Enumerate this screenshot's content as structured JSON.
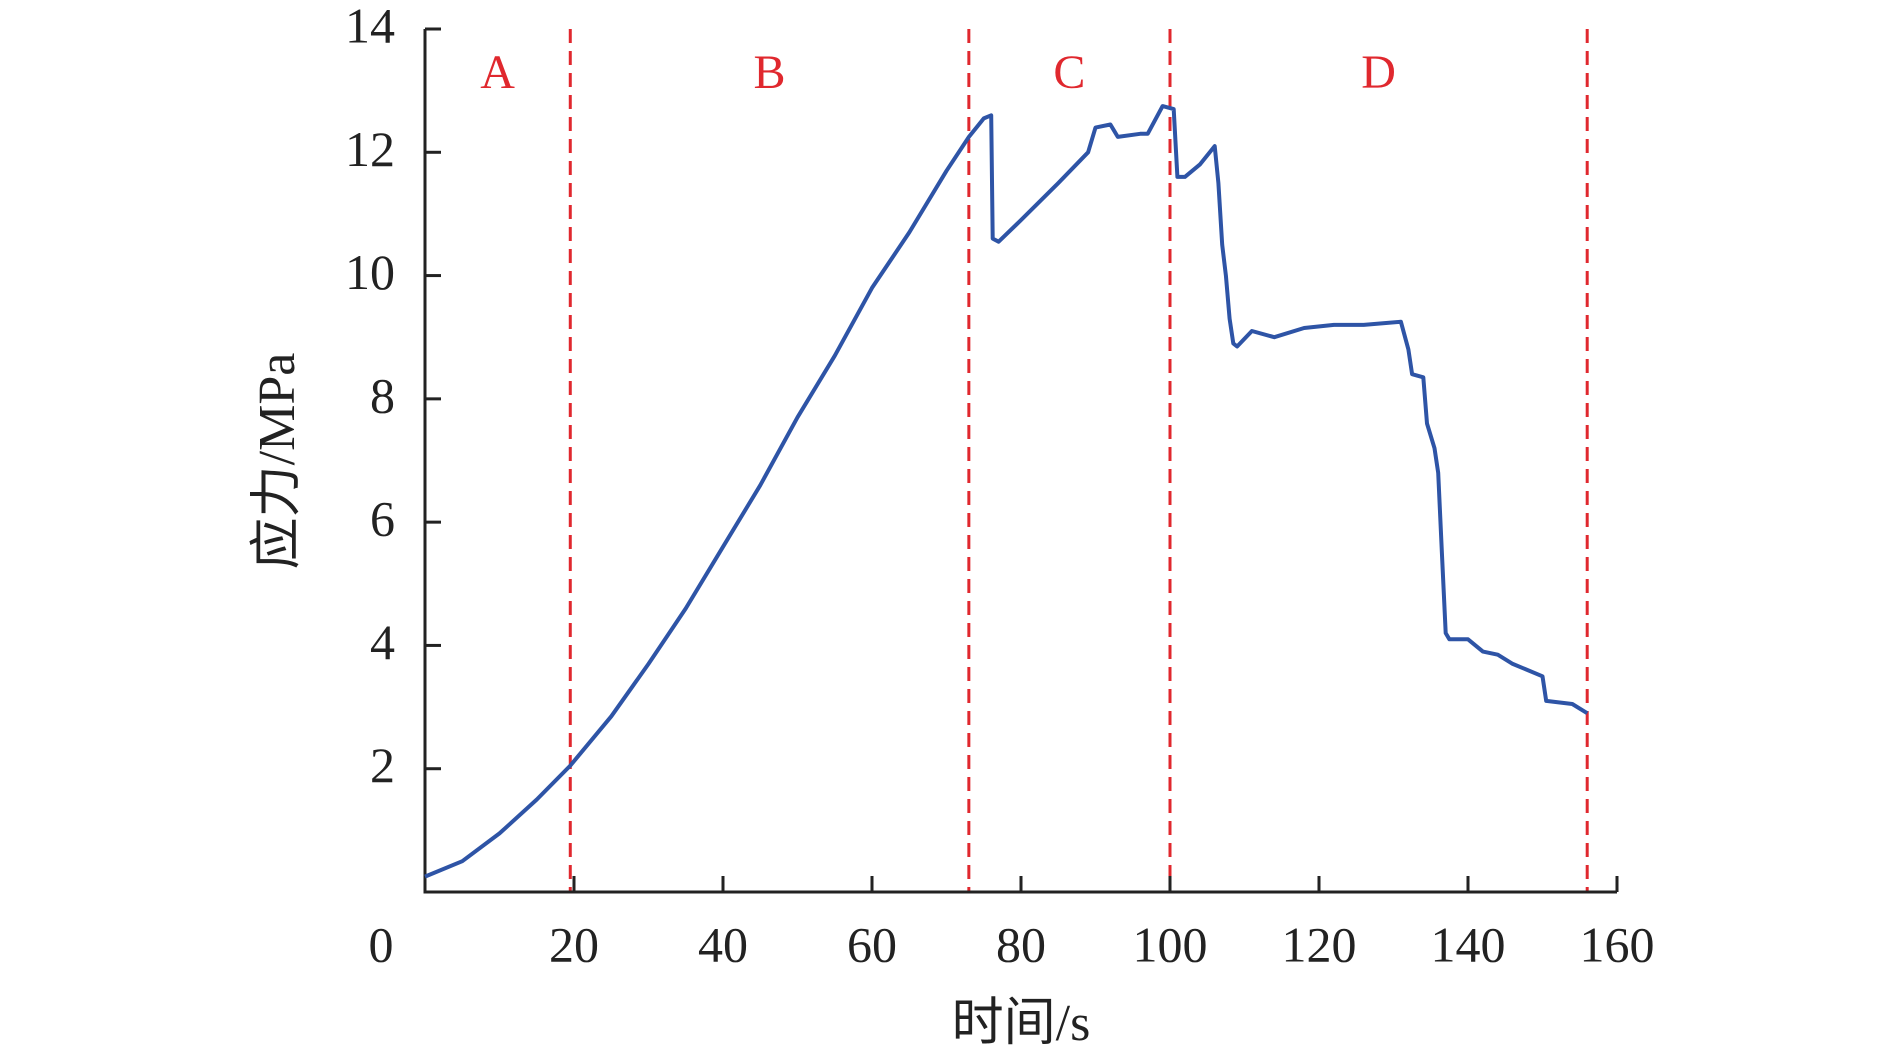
{
  "chart_data": {
    "type": "line",
    "x_label": "时间/s",
    "y_label": "应力/MPa",
    "color": "#2e54a6",
    "x": [
      0,
      5,
      10,
      15,
      19.5,
      25,
      30,
      35,
      40,
      45,
      50,
      55,
      60,
      65,
      70,
      73,
      75,
      76,
      76.2,
      77,
      80,
      85,
      89,
      90,
      92,
      93,
      96,
      97,
      99,
      100.5,
      101,
      102,
      104,
      106,
      106.5,
      107,
      107.5,
      108,
      108.5,
      109,
      111,
      114,
      118,
      122,
      126,
      131,
      132,
      132.5,
      134,
      134.5,
      135.5,
      136,
      136.5,
      137,
      137.5,
      140,
      142,
      144,
      146,
      150,
      150.5,
      154,
      156
    ],
    "values": [
      0.25,
      0.5,
      0.95,
      1.5,
      2.05,
      2.85,
      3.7,
      4.6,
      5.6,
      6.6,
      7.7,
      8.7,
      9.8,
      10.7,
      11.7,
      12.25,
      12.55,
      12.6,
      10.6,
      10.55,
      10.9,
      11.5,
      12.0,
      12.4,
      12.45,
      12.25,
      12.3,
      12.3,
      12.75,
      12.7,
      11.6,
      11.6,
      11.8,
      12.1,
      11.5,
      10.5,
      10.0,
      9.3,
      8.9,
      8.85,
      9.1,
      9.0,
      9.15,
      9.2,
      9.2,
      9.25,
      8.8,
      8.4,
      8.35,
      7.6,
      7.2,
      6.8,
      5.5,
      4.2,
      4.1,
      4.1,
      3.9,
      3.85,
      3.7,
      3.5,
      3.1,
      3.05,
      2.9
    ],
    "xlim": [
      0,
      160
    ],
    "xticks": [
      0,
      20,
      40,
      60,
      80,
      100,
      120,
      140,
      160
    ],
    "ylim": [
      0,
      14
    ],
    "yticks": [
      2,
      4,
      6,
      8,
      10,
      12,
      14
    ],
    "dividers": [
      19.5,
      73,
      100,
      156
    ],
    "divider_color": "#e0282e",
    "regions": [
      "A",
      "B",
      "C",
      "D"
    ]
  }
}
